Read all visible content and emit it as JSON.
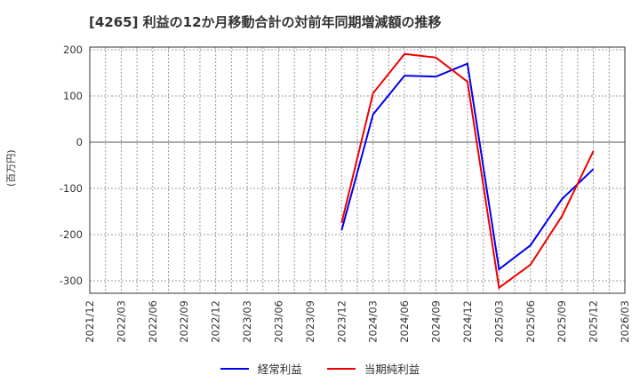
{
  "title": "[4265]  利益の12か月移動合計の対前年同期増減額の推移",
  "chart_data": {
    "type": "line",
    "title": "[4265]  利益の12か月移動合計の対前年同期増減額の推移",
    "xlabel": "",
    "ylabel": "(百万円)",
    "ylim": [
      -330,
      205
    ],
    "yticks": [
      200,
      100,
      0,
      -100,
      -200,
      -300
    ],
    "grid": true,
    "legend_position": "bottom",
    "categories": [
      "2021/12",
      "2022/03",
      "2022/06",
      "2022/09",
      "2022/12",
      "2023/03",
      "2023/06",
      "2023/09",
      "2023/12",
      "2024/03",
      "2024/06",
      "2024/09",
      "2024/12",
      "2025/03",
      "2025/06",
      "2025/09",
      "2025/12",
      "2026/03"
    ],
    "series": [
      {
        "name": "経常利益",
        "color": "#0000ee",
        "values": [
          null,
          null,
          null,
          null,
          null,
          null,
          null,
          null,
          -191,
          60,
          144,
          142,
          170,
          -275,
          -223,
          -123,
          -58,
          null
        ]
      },
      {
        "name": "当期純利益",
        "color": "#ee0000",
        "values": [
          null,
          null,
          null,
          null,
          null,
          null,
          null,
          null,
          -175,
          106,
          191,
          183,
          131,
          -315,
          -265,
          -160,
          -19,
          null
        ]
      }
    ]
  },
  "legend": [
    {
      "label": "経常利益",
      "color": "#0000ee"
    },
    {
      "label": "当期純利益",
      "color": "#ee0000"
    }
  ]
}
